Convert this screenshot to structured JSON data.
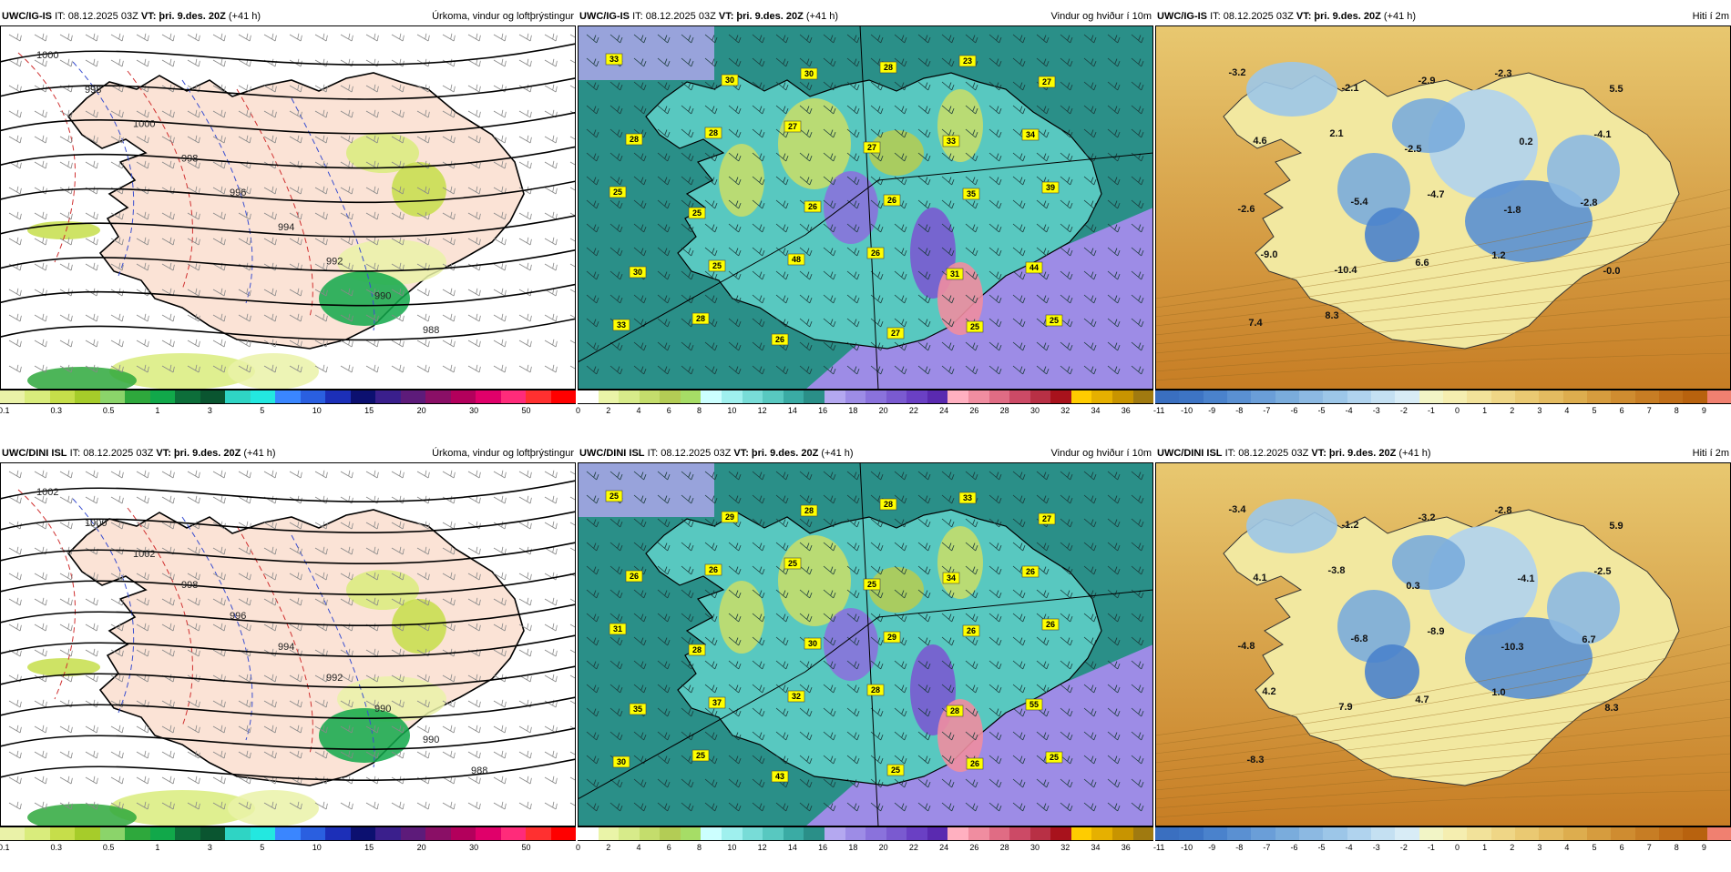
{
  "panels": [
    {
      "id": "p1",
      "model": "UWC/IG-IS",
      "it": "IT: 08.12.2025 03Z",
      "vt_prefix": "VT:",
      "vt": "þri. 9.des. 20Z",
      "lead": "(+41 h)",
      "title": "Úrkoma, vindur og loftþrýstingur",
      "kind": "precip",
      "isobars": [
        "1000",
        "998",
        "1000",
        "998",
        "996",
        "994",
        "992",
        "990",
        "988"
      ]
    },
    {
      "id": "p2",
      "model": "UWC/IG-IS",
      "it": "IT: 08.12.2025 03Z",
      "vt_prefix": "VT:",
      "vt": "þri. 9.des. 20Z",
      "lead": "(+41 h)",
      "title": "Vindur og hviður í 10m",
      "kind": "wind",
      "labels": [
        "33",
        "30",
        "30",
        "28",
        "23",
        "27",
        "28",
        "28",
        "27",
        "27",
        "33",
        "34",
        "25",
        "25",
        "26",
        "26",
        "35",
        "39",
        "30",
        "25",
        "48",
        "26",
        "31",
        "44",
        "33",
        "28",
        "26",
        "27",
        "25",
        "25"
      ]
    },
    {
      "id": "p3",
      "model": "UWC/IG-IS",
      "it": "IT: 08.12.2025 03Z",
      "vt_prefix": "VT:",
      "vt": "þri. 9.des. 20Z",
      "lead": "(+41 h)",
      "title": "Hiti í 2m",
      "kind": "temp",
      "labels": [
        "-3.2",
        "-2.1",
        "-2.9",
        "-2.3",
        "5.5",
        "4.6",
        "2.1",
        "-2.5",
        "0.2",
        "-4.1",
        "-2.6",
        "-5.4",
        "-4.7",
        "-1.8",
        "-2.8",
        "-9.0",
        "-10.4",
        "6.6",
        "1.2",
        "-0.0",
        "7.4",
        "8.3"
      ]
    },
    {
      "id": "p4",
      "model": "UWC/DINI ISL",
      "it": "IT: 08.12.2025 03Z",
      "vt_prefix": "VT:",
      "vt": "þri. 9.des. 20Z",
      "lead": "(+41 h)",
      "title": "Úrkoma, vindur og loftþrýstingur",
      "kind": "precip",
      "isobars": [
        "1002",
        "1000",
        "1002",
        "998",
        "996",
        "994",
        "992",
        "990",
        "990",
        "988"
      ]
    },
    {
      "id": "p5",
      "model": "UWC/DINI ISL",
      "it": "IT: 08.12.2025 03Z",
      "vt_prefix": "VT:",
      "vt": "þri. 9.des. 20Z",
      "lead": "(+41 h)",
      "title": "Vindur og hviður í 10m",
      "kind": "wind",
      "labels": [
        "25",
        "29",
        "28",
        "28",
        "33",
        "27",
        "26",
        "26",
        "25",
        "25",
        "34",
        "26",
        "31",
        "28",
        "30",
        "29",
        "26",
        "26",
        "35",
        "37",
        "32",
        "28",
        "28",
        "55",
        "30",
        "25",
        "43",
        "25",
        "26",
        "25"
      ]
    },
    {
      "id": "p6",
      "model": "UWC/DINI ISL",
      "it": "IT: 08.12.2025 03Z",
      "vt_prefix": "VT:",
      "vt": "þri. 9.des. 20Z",
      "lead": "(+41 h)",
      "title": "Hiti í 2m",
      "kind": "temp",
      "labels": [
        "-3.4",
        "-1.2",
        "-3.2",
        "-2.8",
        "5.9",
        "4.1",
        "-3.8",
        "0.3",
        "-4.1",
        "-2.5",
        "-4.8",
        "-6.8",
        "-8.9",
        "-10.3",
        "6.7",
        "4.2",
        "7.9",
        "4.7",
        "1.0",
        "8.3",
        "-8.3"
      ]
    }
  ],
  "colorbars": {
    "precip": {
      "colors": [
        "#eaf2a8",
        "#d9ec7c",
        "#c6de4a",
        "#a6cc2a",
        "#8bd46a",
        "#2ea83c",
        "#11a84a",
        "#0d6e3a",
        "#0a5530",
        "#2fd4c4",
        "#23e8e0",
        "#3a86ff",
        "#2a5fe0",
        "#1c2fb8",
        "#0c1070",
        "#3a1f8c",
        "#5d1b7a",
        "#8a0f66",
        "#b3005c",
        "#e0006a",
        "#ff2b7a",
        "#ff3030",
        "#ff0000"
      ],
      "ticks": [
        "0.1",
        "0.3",
        "0.5",
        "1",
        "3",
        "5",
        "10",
        "15",
        "20",
        "30",
        "50"
      ]
    },
    "wind": {
      "colors": [
        "#ffffff",
        "#eaf4a8",
        "#d7eb8a",
        "#c4dd6c",
        "#b3cc55",
        "#a6dd66",
        "#ccffff",
        "#9ff0ee",
        "#78dcd7",
        "#58c8c0",
        "#3aaba4",
        "#2a8f88",
        "#b4a8f0",
        "#9d8ce6",
        "#8a72dc",
        "#7a5ad0",
        "#6a40c4",
        "#5a2ab0",
        "#ffb0c0",
        "#f08da0",
        "#e06c84",
        "#cc4a66",
        "#b83045",
        "#a8121c",
        "#ffcc00",
        "#e6b000",
        "#c89400",
        "#a07a10"
      ],
      "ticks": [
        "0",
        "2",
        "4",
        "6",
        "8",
        "10",
        "12",
        "14",
        "16",
        "18",
        "20",
        "22",
        "24",
        "26",
        "28",
        "30",
        "32",
        "34",
        "36"
      ]
    },
    "temp": {
      "colors": [
        "#3a6fc0",
        "#3d74c4",
        "#4a82cc",
        "#5a90d2",
        "#6a9ed8",
        "#7aacdc",
        "#8cb9e2",
        "#9cc6e8",
        "#b0d3ee",
        "#c4e0f2",
        "#d8ecf6",
        "#f2f5c6",
        "#f5eeb0",
        "#f2e29a",
        "#efd686",
        "#eac972",
        "#e4bb60",
        "#ddad4e",
        "#d69c3e",
        "#cf8c30",
        "#c77d24",
        "#c06e18",
        "#b8620e",
        "#f08070"
      ],
      "ticks": [
        "-11",
        "-10",
        "-9",
        "-8",
        "-7",
        "-6",
        "-5",
        "-4",
        "-3",
        "-2",
        "-1",
        "0",
        "1",
        "2",
        "3",
        "4",
        "5",
        "6",
        "7",
        "8",
        "9"
      ]
    }
  }
}
